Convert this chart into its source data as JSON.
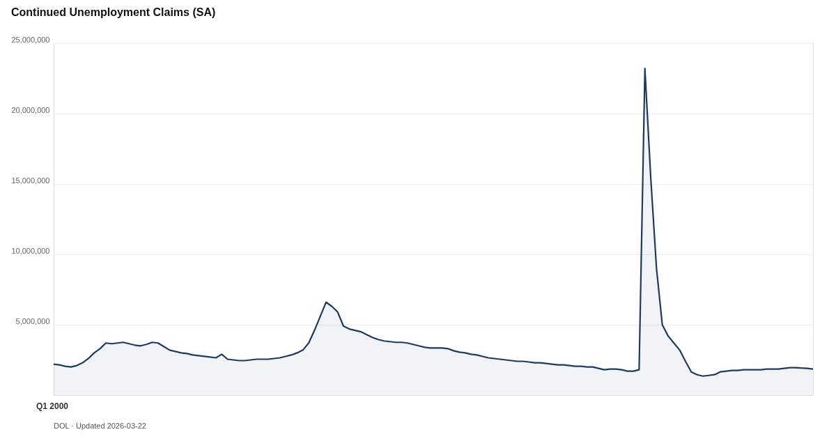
{
  "chart_data": {
    "type": "area",
    "title": "Continued Unemployment Claims (SA)",
    "categories": [
      null,
      null,
      null,
      null,
      null,
      null,
      null,
      null,
      null,
      null,
      null,
      null,
      null,
      null,
      null,
      null,
      null,
      null,
      null,
      null,
      null,
      null,
      null,
      null,
      null,
      null,
      null,
      null,
      null,
      null,
      null,
      null,
      null,
      null,
      null,
      null,
      null,
      null,
      null,
      null,
      null,
      null,
      null,
      null,
      null,
      null,
      null,
      null,
      null,
      null,
      null,
      null,
      null,
      null,
      null,
      null,
      null,
      null,
      null,
      null,
      null,
      null,
      null,
      null,
      null,
      null,
      null,
      null,
      null,
      null,
      null,
      null,
      null,
      null,
      null,
      null,
      null,
      null,
      null,
      null,
      null,
      null,
      null,
      null,
      null,
      null,
      null,
      null,
      null,
      null,
      null,
      null,
      null,
      null,
      null,
      null,
      null,
      null,
      null,
      null,
      null,
      null,
      null,
      null,
      null,
      null,
      null,
      null,
      null,
      null,
      null,
      null,
      null,
      null,
      null,
      null,
      null,
      null,
      null,
      null,
      null,
      null,
      null,
      null,
      null,
      null,
      null,
      null,
      null,
      null,
      null,
      null
    ],
    "series": [
      {
        "color": "#1f3a5f",
        "values": [
          2200000,
          2150000,
          2050000,
          2000000,
          2100000,
          2300000,
          2600000,
          3000000,
          3300000,
          3700000,
          3650000,
          3700000,
          3750000,
          3650000,
          3550000,
          3500000,
          3600000,
          3750000,
          3700000,
          3450000,
          3200000,
          3100000,
          3000000,
          2950000,
          2850000,
          2800000,
          2750000,
          2700000,
          2650000,
          2900000,
          2550000,
          2500000,
          2450000,
          2450000,
          2500000,
          2550000,
          2550000,
          2550000,
          2600000,
          2650000,
          2750000,
          2850000,
          3000000,
          3200000,
          3700000,
          4600000,
          5600000,
          6600000,
          6300000,
          5900000,
          4900000,
          4700000,
          4600000,
          4500000,
          4300000,
          4100000,
          3950000,
          3850000,
          3800000,
          3750000,
          3750000,
          3700000,
          3600000,
          3500000,
          3400000,
          3350000,
          3350000,
          3350000,
          3300000,
          3150000,
          3050000,
          3000000,
          2900000,
          2850000,
          2750000,
          2650000,
          2600000,
          2550000,
          2500000,
          2450000,
          2400000,
          2400000,
          2350000,
          2300000,
          2300000,
          2250000,
          2200000,
          2150000,
          2150000,
          2100000,
          2050000,
          2050000,
          2000000,
          2000000,
          1900000,
          1800000,
          1850000,
          1850000,
          1800000,
          1700000,
          1700000,
          1800000,
          23200000,
          15500000,
          9000000,
          5000000,
          4200000,
          3700000,
          3200000,
          2400000,
          1650000,
          1450000,
          1350000,
          1400000,
          1450000,
          1650000,
          1700000,
          1750000,
          1750000,
          1800000,
          1800000,
          1800000,
          1800000,
          1850000,
          1850000,
          1850000,
          1900000,
          1950000,
          1950000,
          1920000,
          1900000,
          1850000
        ]
      }
    ],
    "ylim": [
      0,
      25000000
    ],
    "yticks": [
      {
        "value": 5000000,
        "label": "5,000,000"
      },
      {
        "value": 10000000,
        "label": "10,000,000"
      },
      {
        "value": 15000000,
        "label": "15,000,000"
      },
      {
        "value": 20000000,
        "label": "20,000,000"
      },
      {
        "value": 25000000,
        "label": "25,000,000"
      }
    ],
    "grid": "y",
    "annotations": [
      "Q1 2000",
      "DOL · Updated 2026-03-22"
    ]
  }
}
